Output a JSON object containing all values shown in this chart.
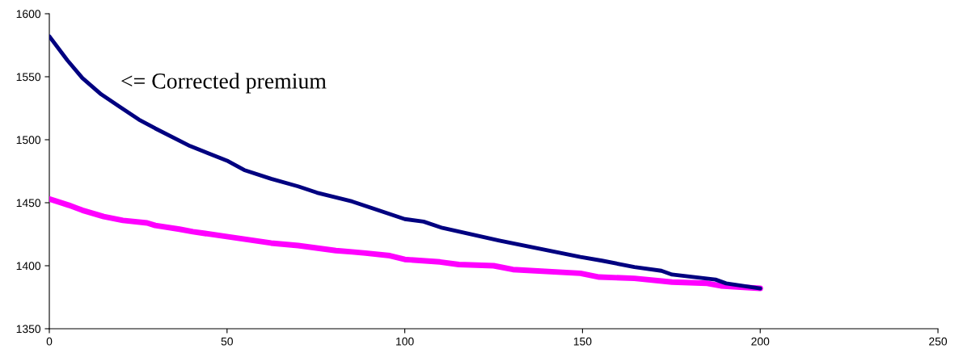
{
  "chart_data": {
    "type": "line",
    "series": [
      {
        "color": "#000080",
        "x": [
          0,
          5.1,
          9.3,
          14.6,
          19.9,
          25.2,
          29.8,
          39.6,
          50.3,
          54.8,
          62.4,
          70,
          75.3,
          85.2,
          100,
          105.3,
          110.6,
          126.6,
          149.4,
          155.5,
          164.6,
          172.2,
          175.2,
          187.4,
          190.4,
          200
        ],
        "values": [
          1582,
          1563,
          1549,
          1536,
          1526,
          1516,
          1509,
          1495,
          1483,
          1476,
          1469,
          1463,
          1458,
          1451,
          1437,
          1435,
          1430,
          1420,
          1407,
          1404,
          1399,
          1396,
          1393,
          1389,
          1386,
          1382
        ]
      },
      {
        "color": "#ff00ff",
        "x": [
          0,
          5.5,
          9.3,
          15.3,
          20.7,
          27.5,
          29.8,
          36.6,
          40.4,
          50.3,
          62.4,
          70,
          80.6,
          85.2,
          89,
          95.8,
          100,
          109.9,
          115.2,
          125,
          130.4,
          149.4,
          154.7,
          164.6,
          175.2,
          185.1,
          188.9,
          200
        ],
        "values": [
          1453,
          1448,
          1444,
          1439,
          1436,
          1434,
          1432,
          1429,
          1427,
          1423,
          1418,
          1416,
          1412,
          1411,
          1410,
          1408,
          1405,
          1403,
          1401,
          1400,
          1397,
          1394,
          1391,
          1390,
          1387,
          1386,
          1384,
          1382
        ]
      }
    ],
    "xlim": [
      0,
      250
    ],
    "xticks": [
      0,
      50,
      100,
      150,
      200,
      250
    ],
    "ylim": [
      1350,
      1600
    ],
    "yticks": [
      1350,
      1400,
      1450,
      1500,
      1550,
      1600
    ],
    "annotations": [
      "<= Corrected premium"
    ],
    "grid": false,
    "legend": false,
    "marker": "none",
    "line_style": "solid"
  }
}
